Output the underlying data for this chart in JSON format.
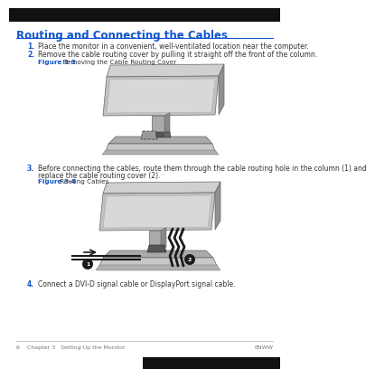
{
  "title": "Routing and Connecting the Cables",
  "title_color": "#1155CC",
  "bg_color": "#ffffff",
  "border_color": "#cccccc",
  "item1": "Place the monitor in a convenient, well-ventilated location near the computer.",
  "item2": "Remove the cable routing cover by pulling it straight off the front of the column.",
  "fig3_3_label": "Figure 3-3",
  "fig3_3_caption": " Removing the Cable Routing Cover",
  "item3_a": "Before connecting the cables, route them through the cable routing hole in the column (1) and",
  "item3_b": "replace the cable routing cover (2).",
  "fig3_4_label": "Figure 3-4",
  "fig3_4_caption": " Routing Cables",
  "item4": "Connect a DVI-D signal cable or DisplayPort signal cable.",
  "footer_left": "6    Chapter 3   Setting Up the Monitor",
  "footer_right": "ENWW",
  "text_color": "#333333",
  "blue_color": "#1155CC",
  "footer_color": "#777777",
  "body_fontsize": 5.5,
  "label_fontsize": 5.2,
  "title_fontsize": 8.5,
  "footer_fontsize": 4.5,
  "gray_lightest": "#d8d8d8",
  "gray_light": "#b8b8b8",
  "gray_mid": "#999999",
  "gray_dark": "#666666",
  "black": "#1a1a1a",
  "header_black": "#111111",
  "white": "#ffffff"
}
